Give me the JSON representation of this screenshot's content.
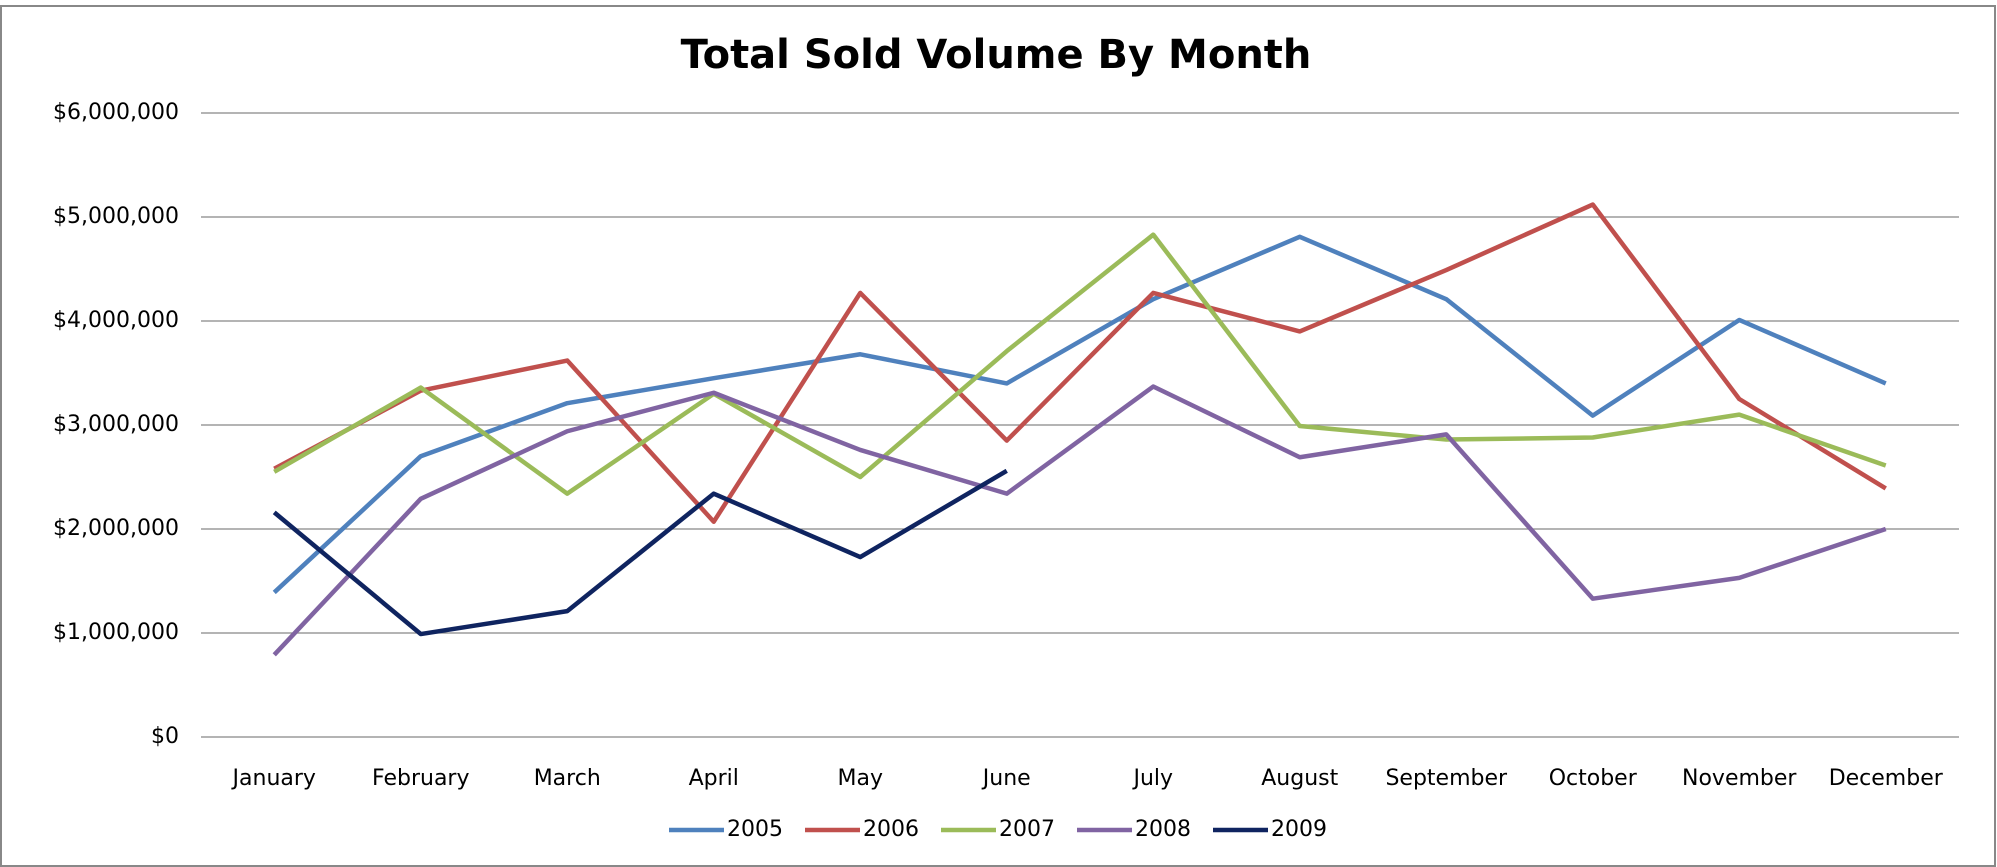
{
  "chart_data": {
    "type": "line",
    "title": "Total Sold Volume By Month",
    "categories": [
      "January",
      "February",
      "March",
      "April",
      "May",
      "June",
      "July",
      "August",
      "September",
      "October",
      "November",
      "December"
    ],
    "series": [
      {
        "name": "2005",
        "color": "#4f81bd",
        "values": [
          1390000,
          2700000,
          3210000,
          3450000,
          3680000,
          3400000,
          4210000,
          4810000,
          4210000,
          3090000,
          4010000,
          3400000
        ]
      },
      {
        "name": "2006",
        "color": "#c0504d",
        "values": [
          2580000,
          3330000,
          3620000,
          2070000,
          4270000,
          2850000,
          4270000,
          3900000,
          4490000,
          5120000,
          3250000,
          2390000
        ]
      },
      {
        "name": "2007",
        "color": "#9bbb59",
        "values": [
          2550000,
          3360000,
          2340000,
          3300000,
          2500000,
          3710000,
          4830000,
          2990000,
          2860000,
          2880000,
          3100000,
          2610000
        ]
      },
      {
        "name": "2008",
        "color": "#8064a2",
        "values": [
          790000,
          2290000,
          2940000,
          3310000,
          2760000,
          2340000,
          3370000,
          2690000,
          2910000,
          1330000,
          1530000,
          2000000
        ]
      },
      {
        "name": "2009",
        "color": "#0f2460",
        "values": [
          2160000,
          990000,
          1210000,
          2340000,
          1730000,
          2560000,
          null,
          null,
          null,
          null,
          null,
          null
        ]
      }
    ],
    "ylim": [
      0,
      6000000
    ],
    "yticks": [
      {
        "value": 0,
        "label": "$0"
      },
      {
        "value": 1000000,
        "label": "$1,000,000"
      },
      {
        "value": 2000000,
        "label": "$2,000,000"
      },
      {
        "value": 3000000,
        "label": "$3,000,000"
      },
      {
        "value": 4000000,
        "label": "$4,000,000"
      },
      {
        "value": 5000000,
        "label": "$5,000,000"
      },
      {
        "value": 6000000,
        "label": "$6,000,000"
      }
    ],
    "grid": true,
    "legend": "bottom"
  }
}
